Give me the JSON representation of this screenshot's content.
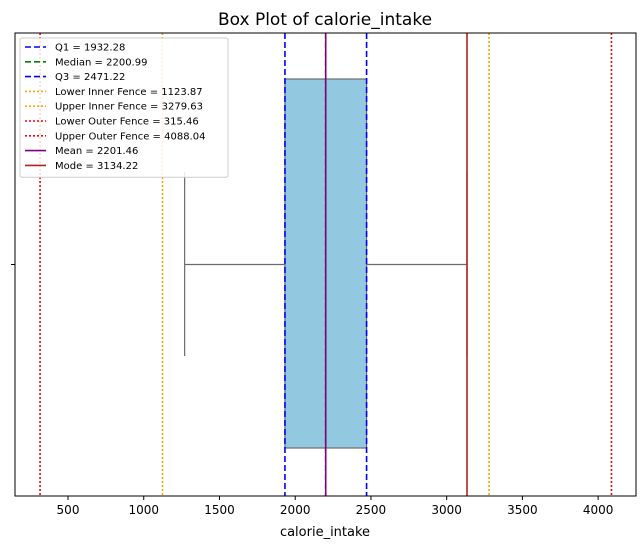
{
  "chart_data": {
    "type": "box",
    "title": "Box Plot of calorie_intake",
    "xlabel": "calorie_intake",
    "ylabel": "",
    "xlim": [
      150,
      4250
    ],
    "xticks": [
      500,
      1000,
      1500,
      2000,
      2500,
      3000,
      3500,
      4000
    ],
    "grid": false,
    "legend_position": "top-left",
    "box": {
      "whisker_low": 1270,
      "q1": 1932.28,
      "median": 2200.99,
      "q3": 2471.22,
      "whisker_high": 3134.22,
      "fill_color": "#92c9e0",
      "edge_color": "#6b6b6b"
    },
    "reference_lines": [
      {
        "label": "Q1 = 1932.28",
        "value": 1932.28,
        "color": "#0000ff",
        "style": "dashed"
      },
      {
        "label": "Median = 2200.99",
        "value": 2200.99,
        "color": "#008000",
        "style": "dashed"
      },
      {
        "label": "Q3 = 2471.22",
        "value": 2471.22,
        "color": "#0000ff",
        "style": "dashed"
      },
      {
        "label": "Lower Inner Fence = 1123.87",
        "value": 1123.87,
        "color": "#ffa500",
        "style": "dotted"
      },
      {
        "label": "Upper Inner Fence = 3279.63",
        "value": 3279.63,
        "color": "#ffa500",
        "style": "dotted"
      },
      {
        "label": "Lower Outer Fence = 315.46",
        "value": 315.46,
        "color": "#ff0000",
        "style": "dotted"
      },
      {
        "label": "Upper Outer Fence = 4088.04",
        "value": 4088.04,
        "color": "#ff0000",
        "style": "dotted"
      },
      {
        "label": "Mean = 2201.46",
        "value": 2201.46,
        "color": "#800080",
        "style": "solid"
      },
      {
        "label": "Mode = 3134.22",
        "value": 3134.22,
        "color": "#b22222",
        "style": "solid"
      }
    ]
  }
}
